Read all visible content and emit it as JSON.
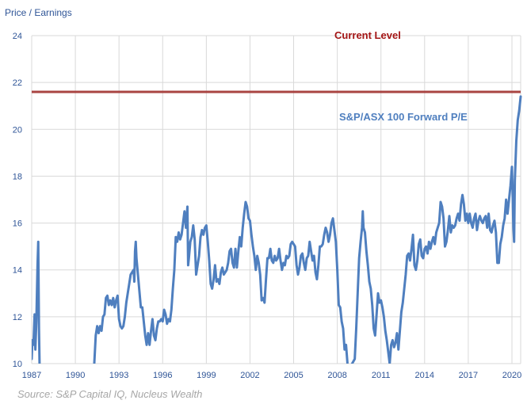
{
  "chart_data": {
    "type": "line",
    "ylabel": "Price / Earnings",
    "xlabel": "",
    "ylim": [
      10,
      24
    ],
    "xlim": [
      1987,
      2020.6
    ],
    "y_ticks": [
      "10",
      "12",
      "14",
      "16",
      "18",
      "20",
      "22",
      "24"
    ],
    "x_ticks": [
      "1987",
      "1990",
      "1993",
      "1996",
      "1999",
      "2002",
      "2005",
      "2008",
      "2011",
      "2014",
      "2017",
      "2020"
    ],
    "grid": "horizontal and vertical",
    "reference_line": {
      "label": "Current Level",
      "value": 21.6,
      "color": "#a94442"
    },
    "series": [
      {
        "name": "S&P/ASX 100 Forward P/E",
        "color": "#4f7fbf",
        "points": [
          [
            1987.0,
            10.2
          ],
          [
            1987.05,
            11.0
          ],
          [
            1987.12,
            10.8
          ],
          [
            1987.2,
            12.1
          ],
          [
            1987.25,
            10.6
          ],
          [
            1987.32,
            11.8
          ],
          [
            1987.4,
            14.2
          ],
          [
            1987.45,
            15.2
          ],
          [
            1987.5,
            11.5
          ],
          [
            1987.55,
            9.6
          ],
          [
            1991.3,
            10.0
          ],
          [
            1991.4,
            11.2
          ],
          [
            1991.5,
            11.6
          ],
          [
            1991.6,
            11.3
          ],
          [
            1991.7,
            11.6
          ],
          [
            1991.8,
            11.4
          ],
          [
            1991.9,
            12.0
          ],
          [
            1992.0,
            12.1
          ],
          [
            1992.1,
            12.8
          ],
          [
            1992.2,
            12.9
          ],
          [
            1992.3,
            12.5
          ],
          [
            1992.4,
            12.7
          ],
          [
            1992.5,
            12.5
          ],
          [
            1992.6,
            12.8
          ],
          [
            1992.7,
            12.4
          ],
          [
            1992.8,
            12.7
          ],
          [
            1992.9,
            12.9
          ],
          [
            1993.0,
            11.9
          ],
          [
            1993.1,
            11.6
          ],
          [
            1993.2,
            11.5
          ],
          [
            1993.3,
            11.6
          ],
          [
            1993.4,
            12.0
          ],
          [
            1993.5,
            12.6
          ],
          [
            1993.6,
            13.0
          ],
          [
            1993.7,
            13.4
          ],
          [
            1993.8,
            13.8
          ],
          [
            1993.9,
            13.9
          ],
          [
            1994.0,
            14.0
          ],
          [
            1994.05,
            13.5
          ],
          [
            1994.1,
            14.8
          ],
          [
            1994.15,
            15.2
          ],
          [
            1994.2,
            14.5
          ],
          [
            1994.3,
            13.8
          ],
          [
            1994.4,
            13.1
          ],
          [
            1994.5,
            12.4
          ],
          [
            1994.6,
            12.4
          ],
          [
            1994.7,
            11.8
          ],
          [
            1994.8,
            11.2
          ],
          [
            1994.9,
            10.8
          ],
          [
            1995.0,
            11.3
          ],
          [
            1995.1,
            10.8
          ],
          [
            1995.2,
            11.4
          ],
          [
            1995.3,
            11.9
          ],
          [
            1995.4,
            11.2
          ],
          [
            1995.5,
            11.0
          ],
          [
            1995.6,
            11.5
          ],
          [
            1995.7,
            11.8
          ],
          [
            1995.8,
            11.8
          ],
          [
            1995.9,
            11.9
          ],
          [
            1996.0,
            11.8
          ],
          [
            1996.1,
            12.3
          ],
          [
            1996.2,
            12.1
          ],
          [
            1996.3,
            11.7
          ],
          [
            1996.4,
            11.9
          ],
          [
            1996.5,
            11.8
          ],
          [
            1996.6,
            12.3
          ],
          [
            1996.7,
            13.2
          ],
          [
            1996.8,
            14.0
          ],
          [
            1996.9,
            15.4
          ],
          [
            1997.0,
            15.2
          ],
          [
            1997.1,
            15.6
          ],
          [
            1997.2,
            15.3
          ],
          [
            1997.3,
            15.5
          ],
          [
            1997.4,
            16.0
          ],
          [
            1997.5,
            16.5
          ],
          [
            1997.6,
            15.8
          ],
          [
            1997.7,
            16.7
          ],
          [
            1997.75,
            14.2
          ],
          [
            1997.8,
            14.5
          ],
          [
            1997.9,
            15.2
          ],
          [
            1998.0,
            15.4
          ],
          [
            1998.1,
            15.9
          ],
          [
            1998.2,
            15.3
          ],
          [
            1998.3,
            13.8
          ],
          [
            1998.4,
            14.2
          ],
          [
            1998.5,
            14.6
          ],
          [
            1998.6,
            15.4
          ],
          [
            1998.7,
            15.7
          ],
          [
            1998.8,
            15.5
          ],
          [
            1998.9,
            15.8
          ],
          [
            1999.0,
            15.9
          ],
          [
            1999.1,
            15.2
          ],
          [
            1999.2,
            14.4
          ],
          [
            1999.3,
            13.4
          ],
          [
            1999.4,
            13.2
          ],
          [
            1999.5,
            13.6
          ],
          [
            1999.6,
            14.2
          ],
          [
            1999.7,
            13.5
          ],
          [
            1999.8,
            13.6
          ],
          [
            1999.9,
            13.4
          ],
          [
            2000.0,
            13.9
          ],
          [
            2000.1,
            14.1
          ],
          [
            2000.2,
            13.8
          ],
          [
            2000.3,
            13.9
          ],
          [
            2000.4,
            14.0
          ],
          [
            2000.5,
            14.3
          ],
          [
            2000.6,
            14.8
          ],
          [
            2000.7,
            14.9
          ],
          [
            2000.8,
            14.3
          ],
          [
            2000.9,
            14.1
          ],
          [
            2001.0,
            14.9
          ],
          [
            2001.1,
            14.1
          ],
          [
            2001.2,
            14.8
          ],
          [
            2001.3,
            15.4
          ],
          [
            2001.4,
            15.0
          ],
          [
            2001.5,
            15.8
          ],
          [
            2001.6,
            16.4
          ],
          [
            2001.7,
            16.9
          ],
          [
            2001.8,
            16.7
          ],
          [
            2001.9,
            16.2
          ],
          [
            2002.0,
            16.1
          ],
          [
            2002.1,
            15.5
          ],
          [
            2002.2,
            15.0
          ],
          [
            2002.3,
            14.6
          ],
          [
            2002.4,
            14.0
          ],
          [
            2002.5,
            14.6
          ],
          [
            2002.6,
            14.3
          ],
          [
            2002.7,
            13.8
          ],
          [
            2002.8,
            12.7
          ],
          [
            2002.9,
            12.8
          ],
          [
            2003.0,
            12.6
          ],
          [
            2003.1,
            13.6
          ],
          [
            2003.2,
            14.5
          ],
          [
            2003.3,
            14.5
          ],
          [
            2003.4,
            14.9
          ],
          [
            2003.5,
            14.4
          ],
          [
            2003.6,
            14.3
          ],
          [
            2003.7,
            14.6
          ],
          [
            2003.8,
            14.4
          ],
          [
            2003.9,
            14.5
          ],
          [
            2004.0,
            14.9
          ],
          [
            2004.1,
            14.4
          ],
          [
            2004.2,
            14.0
          ],
          [
            2004.3,
            14.3
          ],
          [
            2004.4,
            14.2
          ],
          [
            2004.5,
            14.6
          ],
          [
            2004.6,
            14.5
          ],
          [
            2004.7,
            14.6
          ],
          [
            2004.8,
            15.1
          ],
          [
            2004.9,
            15.2
          ],
          [
            2005.0,
            15.1
          ],
          [
            2005.1,
            15.0
          ],
          [
            2005.2,
            14.2
          ],
          [
            2005.3,
            13.8
          ],
          [
            2005.4,
            14.1
          ],
          [
            2005.5,
            14.6
          ],
          [
            2005.6,
            14.7
          ],
          [
            2005.7,
            14.3
          ],
          [
            2005.8,
            14.0
          ],
          [
            2005.9,
            14.5
          ],
          [
            2006.0,
            14.6
          ],
          [
            2006.1,
            15.2
          ],
          [
            2006.2,
            14.8
          ],
          [
            2006.3,
            14.4
          ],
          [
            2006.4,
            14.6
          ],
          [
            2006.5,
            13.9
          ],
          [
            2006.6,
            13.6
          ],
          [
            2006.7,
            14.2
          ],
          [
            2006.8,
            15.0
          ],
          [
            2006.9,
            15.0
          ],
          [
            2007.0,
            15.1
          ],
          [
            2007.1,
            15.5
          ],
          [
            2007.2,
            15.8
          ],
          [
            2007.3,
            15.6
          ],
          [
            2007.4,
            15.2
          ],
          [
            2007.5,
            15.5
          ],
          [
            2007.6,
            16.0
          ],
          [
            2007.7,
            16.2
          ],
          [
            2007.8,
            15.7
          ],
          [
            2007.9,
            15.2
          ],
          [
            2008.0,
            14.0
          ],
          [
            2008.1,
            12.5
          ],
          [
            2008.2,
            12.4
          ],
          [
            2008.3,
            11.8
          ],
          [
            2008.4,
            11.5
          ],
          [
            2008.5,
            10.6
          ],
          [
            2008.6,
            10.8
          ],
          [
            2008.7,
            10.0
          ],
          [
            2008.75,
            9.7
          ],
          [
            2009.2,
            10.2
          ],
          [
            2009.3,
            11.5
          ],
          [
            2009.4,
            13.0
          ],
          [
            2009.5,
            14.5
          ],
          [
            2009.6,
            15.2
          ],
          [
            2009.7,
            15.8
          ],
          [
            2009.75,
            16.5
          ],
          [
            2009.8,
            15.8
          ],
          [
            2009.9,
            15.6
          ],
          [
            2010.0,
            14.8
          ],
          [
            2010.1,
            14.2
          ],
          [
            2010.2,
            13.5
          ],
          [
            2010.3,
            13.2
          ],
          [
            2010.4,
            12.5
          ],
          [
            2010.5,
            11.5
          ],
          [
            2010.6,
            11.2
          ],
          [
            2010.7,
            12.1
          ],
          [
            2010.8,
            13.0
          ],
          [
            2010.9,
            12.6
          ],
          [
            2011.0,
            12.7
          ],
          [
            2011.1,
            12.4
          ],
          [
            2011.2,
            12.0
          ],
          [
            2011.3,
            11.4
          ],
          [
            2011.4,
            11.0
          ],
          [
            2011.5,
            10.5
          ],
          [
            2011.6,
            10.0
          ],
          [
            2011.7,
            10.8
          ],
          [
            2011.8,
            11.0
          ],
          [
            2011.9,
            10.7
          ],
          [
            2012.0,
            10.9
          ],
          [
            2012.1,
            11.3
          ],
          [
            2012.2,
            10.6
          ],
          [
            2012.3,
            11.4
          ],
          [
            2012.4,
            12.2
          ],
          [
            2012.5,
            12.6
          ],
          [
            2012.6,
            13.2
          ],
          [
            2012.7,
            13.8
          ],
          [
            2012.8,
            14.6
          ],
          [
            2012.9,
            14.7
          ],
          [
            2013.0,
            14.4
          ],
          [
            2013.1,
            14.9
          ],
          [
            2013.2,
            15.5
          ],
          [
            2013.3,
            14.2
          ],
          [
            2013.4,
            14.0
          ],
          [
            2013.5,
            14.4
          ],
          [
            2013.6,
            15.1
          ],
          [
            2013.7,
            15.3
          ],
          [
            2013.8,
            14.6
          ],
          [
            2013.9,
            14.5
          ],
          [
            2014.0,
            14.9
          ],
          [
            2014.1,
            15.0
          ],
          [
            2014.2,
            14.7
          ],
          [
            2014.3,
            15.2
          ],
          [
            2014.4,
            14.9
          ],
          [
            2014.5,
            15.2
          ],
          [
            2014.6,
            15.4
          ],
          [
            2014.7,
            15.1
          ],
          [
            2014.8,
            15.6
          ],
          [
            2014.9,
            15.8
          ],
          [
            2015.0,
            16.0
          ],
          [
            2015.1,
            16.9
          ],
          [
            2015.2,
            16.7
          ],
          [
            2015.3,
            16.2
          ],
          [
            2015.4,
            15.0
          ],
          [
            2015.5,
            15.2
          ],
          [
            2015.6,
            15.7
          ],
          [
            2015.7,
            16.3
          ],
          [
            2015.8,
            15.6
          ],
          [
            2015.9,
            15.9
          ],
          [
            2016.0,
            15.8
          ],
          [
            2016.1,
            15.9
          ],
          [
            2016.2,
            16.2
          ],
          [
            2016.3,
            16.4
          ],
          [
            2016.4,
            16.1
          ],
          [
            2016.5,
            16.8
          ],
          [
            2016.6,
            17.2
          ],
          [
            2016.7,
            16.8
          ],
          [
            2016.8,
            16.1
          ],
          [
            2016.9,
            16.4
          ],
          [
            2017.0,
            16.0
          ],
          [
            2017.1,
            16.4
          ],
          [
            2017.2,
            16.0
          ],
          [
            2017.3,
            15.8
          ],
          [
            2017.4,
            16.2
          ],
          [
            2017.5,
            16.4
          ],
          [
            2017.6,
            15.7
          ],
          [
            2017.7,
            16.1
          ],
          [
            2017.8,
            16.3
          ],
          [
            2017.9,
            16.1
          ],
          [
            2018.0,
            16.0
          ],
          [
            2018.1,
            16.2
          ],
          [
            2018.2,
            16.3
          ],
          [
            2018.3,
            15.8
          ],
          [
            2018.4,
            16.4
          ],
          [
            2018.5,
            15.7
          ],
          [
            2018.6,
            15.6
          ],
          [
            2018.7,
            15.9
          ],
          [
            2018.8,
            16.1
          ],
          [
            2018.9,
            15.6
          ],
          [
            2019.0,
            14.3
          ],
          [
            2019.1,
            14.3
          ],
          [
            2019.2,
            15.1
          ],
          [
            2019.3,
            15.4
          ],
          [
            2019.4,
            15.9
          ],
          [
            2019.5,
            16.2
          ],
          [
            2019.6,
            17.0
          ],
          [
            2019.7,
            16.4
          ],
          [
            2019.8,
            17.0
          ],
          [
            2019.9,
            17.6
          ],
          [
            2020.0,
            18.4
          ],
          [
            2020.05,
            17.2
          ],
          [
            2020.1,
            15.8
          ],
          [
            2020.15,
            15.2
          ],
          [
            2020.2,
            17.8
          ],
          [
            2020.3,
            19.5
          ],
          [
            2020.4,
            20.4
          ],
          [
            2020.5,
            20.8
          ],
          [
            2020.6,
            21.4
          ]
        ]
      }
    ]
  }
}
